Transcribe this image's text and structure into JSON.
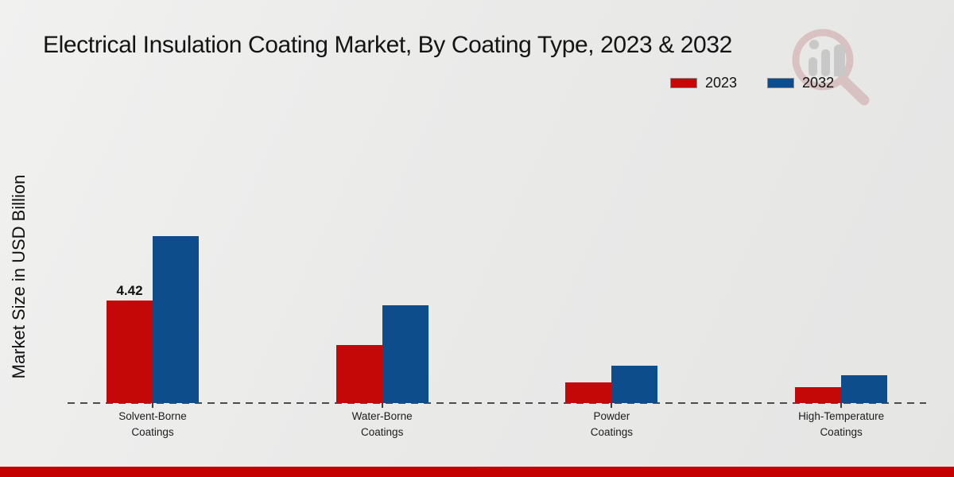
{
  "title": "Electrical Insulation Coating Market, By Coating Type, 2023 & 2032",
  "y_axis_label": "Market Size in USD Billion",
  "legend": {
    "position": "top-right",
    "items": [
      {
        "label": "2023",
        "color": "#c40808"
      },
      {
        "label": "2032",
        "color": "#0e4d8c"
      }
    ]
  },
  "chart_data": {
    "type": "bar",
    "title": "Electrical Insulation Coating Market, By Coating Type, 2023 & 2032",
    "xlabel": "",
    "ylabel": "Market Size in USD Billion",
    "categories": [
      "Solvent-Borne Coatings",
      "Water-Borne Coatings",
      "Powder Coatings",
      "High-Temperature Coatings"
    ],
    "series": [
      {
        "name": "2023",
        "color": "#c40808",
        "values": [
          4.42,
          2.5,
          0.9,
          0.7
        ]
      },
      {
        "name": "2032",
        "color": "#0e4d8c",
        "values": [
          7.2,
          4.2,
          1.6,
          1.2
        ]
      }
    ],
    "data_labels": [
      {
        "category_index": 0,
        "series_index": 0,
        "text": "4.42"
      }
    ],
    "ylim": [
      0,
      7.5
    ],
    "grid": false,
    "y_axis_ticks_visible": false,
    "baseline_style": "dashed",
    "legend_position": "top-right"
  },
  "watermark": {
    "name": "magnifier-bar-chart-logo",
    "ring_color": "#c58f8f",
    "bars_color": "#9f9f9f"
  },
  "footer": {
    "color": "#c40000"
  }
}
